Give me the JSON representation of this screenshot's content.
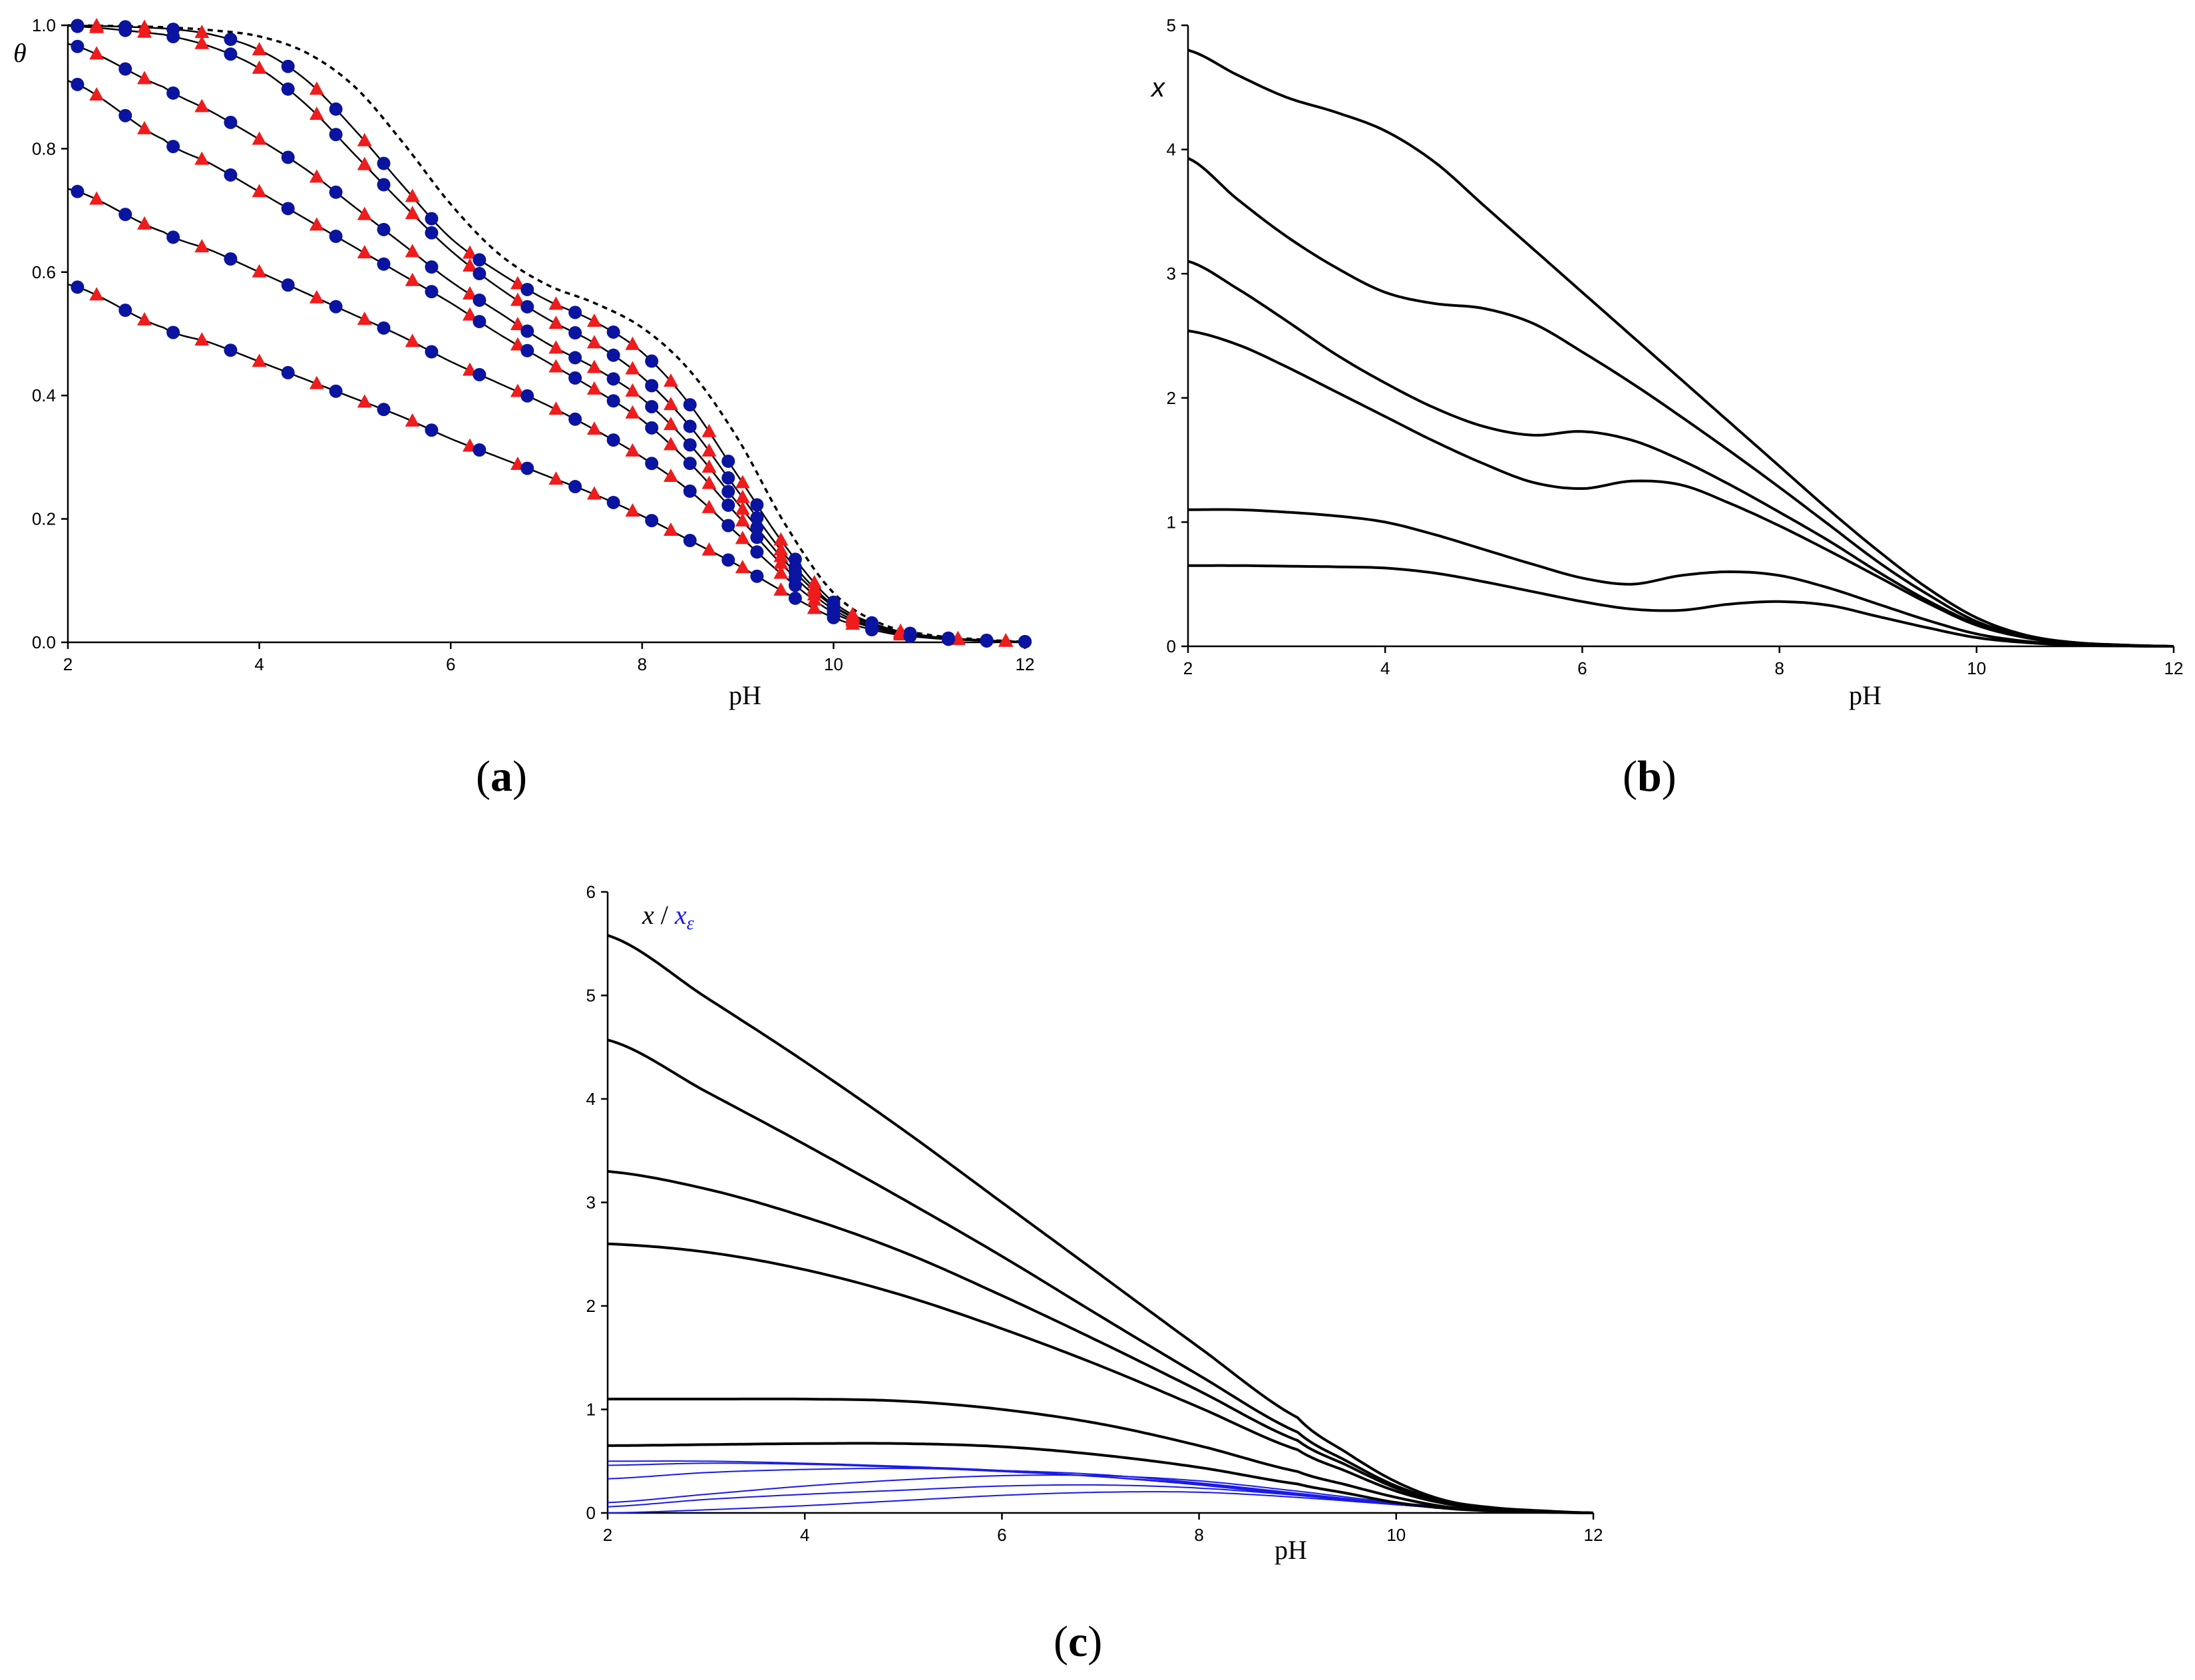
{
  "figure": {
    "panels": [
      "(a)",
      "(b)",
      "(c)"
    ],
    "panel_letters": [
      "a",
      "b",
      "c"
    ]
  },
  "chart_data": [
    {
      "id": "a",
      "type": "line",
      "title": "",
      "xlabel": "pH",
      "ylabel": "θ",
      "xlim": [
        2,
        12
      ],
      "ylim": [
        0,
        1
      ],
      "xticks": [
        2,
        4,
        6,
        8,
        10,
        12
      ],
      "xtick_labels": [
        "2",
        "4",
        "6",
        "8",
        "10",
        "12"
      ],
      "yticks": [
        0,
        0.2,
        0.4,
        0.6,
        0.8,
        1.0
      ],
      "ytick_labels": [
        "0.0",
        "0.2",
        "0.4",
        "0.6",
        "0.8",
        "1.0"
      ],
      "colors": {
        "line": "#000000",
        "circle": "#0a14a0",
        "triangle": "#ee1c1c",
        "dashed": "#000000"
      },
      "dashed_series": {
        "name": "limit",
        "x": [
          2,
          3,
          3.5,
          4,
          4.5,
          5,
          5.5,
          6,
          6.5,
          7,
          7.5,
          8,
          8.5,
          9,
          9.5,
          10,
          10.5,
          11,
          11.5,
          12
        ],
        "y": [
          1.0,
          0.997,
          0.992,
          0.982,
          0.955,
          0.9,
          0.81,
          0.71,
          0.63,
          0.58,
          0.55,
          0.51,
          0.44,
          0.33,
          0.19,
          0.08,
          0.03,
          0.012,
          0.005,
          0.001
        ]
      },
      "series": [
        {
          "name": "c1",
          "x": [
            2,
            3,
            3.5,
            4,
            4.5,
            5,
            5.5,
            6,
            6.5,
            7,
            7.5,
            8,
            8.5,
            9,
            9.5,
            10,
            10.5,
            11,
            11.5,
            12
          ],
          "y": [
            1.0,
            0.995,
            0.985,
            0.96,
            0.91,
            0.83,
            0.74,
            0.655,
            0.6,
            0.555,
            0.52,
            0.47,
            0.385,
            0.27,
            0.155,
            0.065,
            0.026,
            0.01,
            0.004,
            0.001
          ]
        },
        {
          "name": "c2",
          "x": [
            2,
            3,
            3.5,
            4,
            4.5,
            5,
            5.5,
            6,
            6.5,
            7,
            7.5,
            8,
            8.5,
            9,
            9.5,
            10,
            10.5,
            11,
            11.5,
            12
          ],
          "y": [
            0.999,
            0.985,
            0.965,
            0.93,
            0.87,
            0.79,
            0.71,
            0.635,
            0.575,
            0.525,
            0.485,
            0.43,
            0.35,
            0.245,
            0.14,
            0.06,
            0.024,
            0.009,
            0.004,
            0.001
          ]
        },
        {
          "name": "c3",
          "x": [
            2,
            3,
            3.5,
            4,
            4.5,
            5,
            5.5,
            6,
            6.5,
            7,
            7.5,
            8,
            8.5,
            9,
            9.5,
            10,
            10.5,
            11,
            11.5,
            12
          ],
          "y": [
            0.97,
            0.9,
            0.86,
            0.815,
            0.765,
            0.705,
            0.645,
            0.585,
            0.535,
            0.485,
            0.445,
            0.395,
            0.32,
            0.225,
            0.13,
            0.058,
            0.023,
            0.009,
            0.003,
            0.001
          ]
        },
        {
          "name": "c4",
          "x": [
            2,
            3,
            3.5,
            4,
            4.5,
            5,
            5.5,
            6,
            6.5,
            7,
            7.5,
            8,
            8.5,
            9,
            9.5,
            10,
            10.5,
            11,
            11.5,
            12
          ],
          "y": [
            0.91,
            0.815,
            0.775,
            0.73,
            0.685,
            0.64,
            0.595,
            0.55,
            0.5,
            0.455,
            0.41,
            0.36,
            0.29,
            0.205,
            0.12,
            0.053,
            0.021,
            0.008,
            0.003,
            0.001
          ]
        },
        {
          "name": "c5",
          "x": [
            2,
            3,
            3.5,
            4,
            4.5,
            5,
            5.5,
            6,
            6.5,
            7,
            7.5,
            8,
            8.5,
            9,
            9.5,
            10,
            10.5,
            11,
            11.5,
            12
          ],
          "y": [
            0.735,
            0.665,
            0.635,
            0.6,
            0.565,
            0.53,
            0.495,
            0.455,
            0.42,
            0.385,
            0.345,
            0.3,
            0.245,
            0.175,
            0.105,
            0.048,
            0.02,
            0.008,
            0.003,
            0.001
          ]
        },
        {
          "name": "c6",
          "x": [
            2,
            3,
            3.5,
            4,
            4.5,
            5,
            5.5,
            6,
            6.5,
            7,
            7.5,
            8,
            8.5,
            9,
            9.5,
            10,
            10.5,
            11,
            11.5,
            12
          ],
          "y": [
            0.58,
            0.51,
            0.485,
            0.455,
            0.425,
            0.395,
            0.365,
            0.33,
            0.3,
            0.27,
            0.24,
            0.205,
            0.165,
            0.125,
            0.08,
            0.04,
            0.017,
            0.007,
            0.003,
            0.001
          ]
        }
      ],
      "circle_x": [
        2.1,
        2.6,
        3.1,
        3.7,
        4.3,
        4.8,
        5.3,
        5.8,
        6.3,
        6.8,
        7.3,
        7.7,
        8.1,
        8.5,
        8.9,
        9.2,
        9.6,
        10.0,
        10.4,
        10.8,
        11.2,
        11.6,
        12.0
      ],
      "triangle_x": [
        2.3,
        2.8,
        3.4,
        4.0,
        4.6,
        5.1,
        5.6,
        6.2,
        6.7,
        7.1,
        7.5,
        7.9,
        8.3,
        8.7,
        9.05,
        9.45,
        9.8,
        10.2,
        10.7,
        11.3,
        11.8
      ]
    },
    {
      "id": "b",
      "type": "line",
      "title": "",
      "xlabel": "pH",
      "ylabel": "x",
      "xlim": [
        2,
        12
      ],
      "ylim": [
        0,
        5
      ],
      "xticks": [
        2,
        4,
        6,
        8,
        10,
        12
      ],
      "xtick_labels": [
        "2",
        "4",
        "6",
        "8",
        "10",
        "12"
      ],
      "yticks": [
        0,
        1,
        2,
        3,
        4,
        5
      ],
      "ytick_labels": [
        "0",
        "1",
        "2",
        "3",
        "4",
        "5"
      ],
      "colors": {
        "line": "#000000"
      },
      "series": [
        {
          "name": "b1",
          "x": [
            2,
            2.5,
            3,
            3.5,
            4,
            4.5,
            5,
            5.5,
            6,
            6.5,
            7,
            7.5,
            8,
            8.5,
            9,
            9.5,
            10,
            10.5,
            11,
            11.5,
            12
          ],
          "y": [
            4.8,
            4.6,
            4.42,
            4.3,
            4.15,
            3.9,
            3.55,
            3.2,
            2.85,
            2.5,
            2.15,
            1.8,
            1.45,
            1.1,
            0.77,
            0.47,
            0.23,
            0.09,
            0.03,
            0.01,
            0.0
          ]
        },
        {
          "name": "b2",
          "x": [
            2,
            2.5,
            3,
            3.5,
            4,
            4.5,
            5,
            5.5,
            6,
            6.5,
            7,
            7.5,
            8,
            8.5,
            9,
            9.5,
            10,
            10.5,
            11,
            11.5,
            12
          ],
          "y": [
            3.93,
            3.6,
            3.3,
            3.05,
            2.85,
            2.76,
            2.72,
            2.6,
            2.37,
            2.12,
            1.85,
            1.57,
            1.28,
            0.98,
            0.68,
            0.42,
            0.2,
            0.08,
            0.03,
            0.01,
            0.0
          ]
        },
        {
          "name": "b3",
          "x": [
            2,
            2.5,
            3,
            3.5,
            4,
            4.5,
            5,
            5.5,
            6,
            6.5,
            7,
            7.5,
            8,
            8.5,
            9,
            9.5,
            10,
            10.5,
            11,
            11.5,
            12
          ],
          "y": [
            3.1,
            2.88,
            2.62,
            2.35,
            2.12,
            1.92,
            1.77,
            1.7,
            1.73,
            1.66,
            1.5,
            1.3,
            1.08,
            0.85,
            0.6,
            0.37,
            0.18,
            0.07,
            0.02,
            0.005,
            0.0
          ]
        },
        {
          "name": "b4",
          "x": [
            2,
            2.5,
            3,
            3.5,
            4,
            4.5,
            5,
            5.5,
            6,
            6.5,
            7,
            7.5,
            8,
            8.5,
            9,
            9.5,
            10,
            10.5,
            11,
            11.5,
            12
          ],
          "y": [
            2.54,
            2.43,
            2.25,
            2.05,
            1.85,
            1.65,
            1.47,
            1.32,
            1.27,
            1.33,
            1.3,
            1.15,
            0.97,
            0.77,
            0.56,
            0.35,
            0.17,
            0.07,
            0.02,
            0.005,
            0.0
          ]
        },
        {
          "name": "b5",
          "x": [
            2,
            2.5,
            3,
            3.5,
            4,
            4.5,
            5,
            5.5,
            6,
            6.5,
            7,
            7.5,
            8,
            8.5,
            9,
            9.5,
            10,
            10.5,
            11,
            11.5,
            12
          ],
          "y": [
            1.1,
            1.1,
            1.08,
            1.05,
            1.0,
            0.9,
            0.78,
            0.66,
            0.55,
            0.5,
            0.57,
            0.6,
            0.57,
            0.47,
            0.34,
            0.21,
            0.1,
            0.04,
            0.01,
            0.003,
            0.0
          ]
        },
        {
          "name": "b6",
          "x": [
            2,
            2.5,
            3,
            3.5,
            4,
            4.5,
            5,
            5.5,
            6,
            6.5,
            7,
            7.5,
            8,
            8.5,
            9,
            9.5,
            10,
            10.5,
            11,
            11.5,
            12
          ],
          "y": [
            0.65,
            0.65,
            0.645,
            0.64,
            0.63,
            0.59,
            0.52,
            0.44,
            0.36,
            0.3,
            0.29,
            0.34,
            0.36,
            0.33,
            0.24,
            0.15,
            0.07,
            0.03,
            0.01,
            0.003,
            0.0
          ]
        }
      ]
    },
    {
      "id": "c",
      "type": "line",
      "title": "",
      "xlabel": "pH",
      "ylabel": "x / x_ε",
      "ylabel_parts": {
        "x": "x",
        "slash": " / ",
        "xe": "x",
        "sub": "ε"
      },
      "xlim": [
        2,
        12
      ],
      "ylim": [
        0,
        6
      ],
      "xticks": [
        2,
        4,
        6,
        8,
        10,
        12
      ],
      "xtick_labels": [
        "2",
        "4",
        "6",
        "8",
        "10",
        "12"
      ],
      "yticks": [
        0,
        1,
        2,
        3,
        4,
        5,
        6
      ],
      "ytick_labels": [
        "0",
        "1",
        "2",
        "3",
        "4",
        "5",
        "6"
      ],
      "colors": {
        "x_line": "#000000",
        "xe_line": "#1a1ae6"
      },
      "x_series": [
        {
          "name": "x1",
          "x": [
            2,
            3,
            4,
            5,
            6,
            7,
            8,
            9,
            9.5,
            10,
            10.5,
            11,
            11.5,
            12
          ],
          "y": [
            5.58,
            4.98,
            4.36,
            3.7,
            3.0,
            2.3,
            1.6,
            0.92,
            0.58,
            0.3,
            0.12,
            0.05,
            0.02,
            0.0
          ]
        },
        {
          "name": "x2",
          "x": [
            2,
            3,
            4,
            5,
            6,
            7,
            8,
            9,
            9.5,
            10,
            10.5,
            11,
            11.5,
            12
          ],
          "y": [
            4.57,
            4.07,
            3.56,
            3.03,
            2.48,
            1.9,
            1.33,
            0.78,
            0.5,
            0.26,
            0.11,
            0.04,
            0.015,
            0.0
          ]
        },
        {
          "name": "x3",
          "x": [
            2,
            3,
            4,
            5,
            6,
            7,
            8,
            9,
            9.5,
            10,
            10.5,
            11,
            11.5,
            12
          ],
          "y": [
            3.3,
            3.13,
            2.86,
            2.52,
            2.1,
            1.65,
            1.18,
            0.7,
            0.46,
            0.24,
            0.1,
            0.04,
            0.015,
            0.0
          ]
        },
        {
          "name": "x4",
          "x": [
            2,
            3,
            4,
            5,
            6,
            7,
            8,
            9,
            9.5,
            10,
            10.5,
            11,
            11.5,
            12
          ],
          "y": [
            2.6,
            2.52,
            2.35,
            2.1,
            1.78,
            1.42,
            1.02,
            0.61,
            0.4,
            0.21,
            0.09,
            0.035,
            0.012,
            0.0
          ]
        },
        {
          "name": "x5",
          "x": [
            2,
            3,
            4,
            5,
            6,
            7,
            8,
            9,
            9.5,
            10,
            10.5,
            11,
            11.5,
            12
          ],
          "y": [
            1.1,
            1.1,
            1.1,
            1.08,
            1.0,
            0.86,
            0.65,
            0.4,
            0.27,
            0.15,
            0.06,
            0.025,
            0.01,
            0.0
          ]
        },
        {
          "name": "x6",
          "x": [
            2,
            3,
            4,
            5,
            6,
            7,
            8,
            9,
            9.5,
            10,
            10.5,
            11,
            11.5,
            12
          ],
          "y": [
            0.65,
            0.66,
            0.67,
            0.67,
            0.64,
            0.56,
            0.44,
            0.28,
            0.19,
            0.1,
            0.045,
            0.018,
            0.007,
            0.0
          ]
        }
      ],
      "xe_series": [
        {
          "name": "e1",
          "x": [
            2,
            3,
            4,
            5,
            6,
            7,
            8,
            9,
            10,
            11,
            12
          ],
          "y": [
            0.5,
            0.5,
            0.48,
            0.45,
            0.41,
            0.35,
            0.27,
            0.17,
            0.08,
            0.02,
            0.0
          ]
        },
        {
          "name": "e2",
          "x": [
            2,
            3,
            4,
            5,
            6,
            7,
            8,
            9,
            10,
            11,
            12
          ],
          "y": [
            0.46,
            0.48,
            0.47,
            0.44,
            0.4,
            0.35,
            0.28,
            0.18,
            0.08,
            0.02,
            0.0
          ]
        },
        {
          "name": "e3",
          "x": [
            2,
            3,
            4,
            5,
            6,
            7,
            8,
            9,
            10,
            11,
            12
          ],
          "y": [
            0.33,
            0.39,
            0.42,
            0.43,
            0.41,
            0.37,
            0.29,
            0.19,
            0.09,
            0.02,
            0.0
          ]
        },
        {
          "name": "e4",
          "x": [
            2,
            3,
            4,
            5,
            6,
            7,
            8,
            9,
            10,
            11,
            12
          ],
          "y": [
            0.1,
            0.18,
            0.26,
            0.32,
            0.36,
            0.36,
            0.31,
            0.21,
            0.1,
            0.03,
            0.0
          ]
        },
        {
          "name": "e5",
          "x": [
            2,
            3,
            4,
            5,
            6,
            7,
            8,
            9,
            10,
            11,
            12
          ],
          "y": [
            0.06,
            0.13,
            0.18,
            0.22,
            0.26,
            0.27,
            0.24,
            0.17,
            0.09,
            0.02,
            0.0
          ]
        },
        {
          "name": "e6",
          "x": [
            2,
            3,
            4,
            5,
            6,
            7,
            8,
            9,
            10,
            11,
            12
          ],
          "y": [
            0.0,
            0.03,
            0.07,
            0.12,
            0.17,
            0.2,
            0.2,
            0.15,
            0.08,
            0.02,
            0.0
          ]
        }
      ]
    }
  ]
}
